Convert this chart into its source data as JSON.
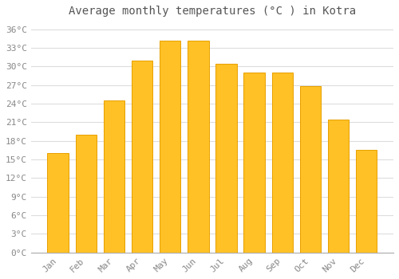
{
  "months": [
    "Jan",
    "Feb",
    "Mar",
    "Apr",
    "May",
    "Jun",
    "Jul",
    "Aug",
    "Sep",
    "Oct",
    "Nov",
    "Dec"
  ],
  "temperatures": [
    16.0,
    19.0,
    24.5,
    31.0,
    34.2,
    34.2,
    30.5,
    29.0,
    29.0,
    26.8,
    21.5,
    16.5
  ],
  "bar_color": "#FFC125",
  "bar_edge_color": "#E8A000",
  "title": "Average monthly temperatures (°C ) in Kotra",
  "title_fontsize": 10,
  "ylim": [
    0,
    37
  ],
  "yticks": [
    0,
    3,
    6,
    9,
    12,
    15,
    18,
    21,
    24,
    27,
    30,
    33,
    36
  ],
  "grid_color": "#dddddd",
  "background_color": "#ffffff",
  "tick_label_color": "#888888",
  "tick_fontsize": 8,
  "font_family": "monospace",
  "bar_width": 0.75
}
